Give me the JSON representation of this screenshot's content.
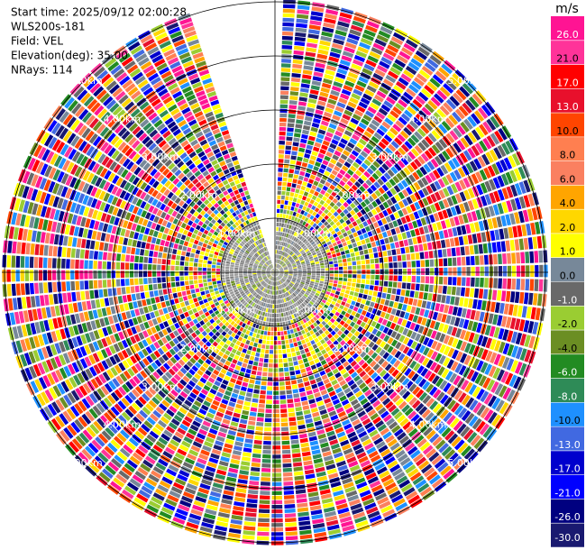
{
  "chart_data": {
    "type": "ppi",
    "header": [
      "Start time: 2025/09/12 02:00:28",
      "WLS200s-181",
      "Field: VEL",
      "Elevation(deg): 35.00",
      "NRays: 114"
    ],
    "rlim": [
      0,
      5.05
    ],
    "rticks": [
      {
        "value": 1,
        "label": "1.00km"
      },
      {
        "value": 2,
        "label": "2.00km"
      },
      {
        "value": 3,
        "label": "3.00km"
      },
      {
        "value": 4,
        "label": "4.00km"
      },
      {
        "value": 5,
        "label": "5.00km"
      }
    ],
    "colorbar": {
      "label": "m/s",
      "ticks": [
        {
          "value": 26,
          "label": "26.0"
        },
        {
          "value": 21,
          "label": "21.0"
        },
        {
          "value": 17,
          "label": "17.0"
        },
        {
          "value": 13,
          "label": "13.0"
        },
        {
          "value": 10,
          "label": "10.0"
        },
        {
          "value": 8,
          "label": "8.0"
        },
        {
          "value": 6,
          "label": "6.0"
        },
        {
          "value": 4,
          "label": "4.0"
        },
        {
          "value": 2,
          "label": "2.0"
        },
        {
          "value": 1,
          "label": "1.0"
        },
        {
          "value": 0,
          "label": "0.0"
        },
        {
          "value": -1,
          "label": "-1.0"
        },
        {
          "value": -2,
          "label": "-2.0"
        },
        {
          "value": -4,
          "label": "-4.0"
        },
        {
          "value": -6,
          "label": "-6.0"
        },
        {
          "value": -8,
          "label": "-8.0"
        },
        {
          "value": -10,
          "label": "-10.0"
        },
        {
          "value": -13,
          "label": "-13.0"
        },
        {
          "value": -17,
          "label": "-17.0"
        },
        {
          "value": -21,
          "label": "-21.0"
        },
        {
          "value": -26,
          "label": "-26.0"
        },
        {
          "value": -30,
          "label": "-30.0"
        }
      ],
      "colors": [
        "#ff1493",
        "#ff3399",
        "#ff0000",
        "#e8102c",
        "#ff4500",
        "#ff7f50",
        "#fa8060",
        "#ffa500",
        "#ffd700",
        "#ffff00",
        "#778899",
        "#696969",
        "#9acd32",
        "#6b8e23",
        "#228b22",
        "#2e8b57",
        "#1e90ff",
        "#4169e1",
        "#0000cd",
        "#0000ff",
        "#000080",
        "#191970"
      ]
    }
  }
}
